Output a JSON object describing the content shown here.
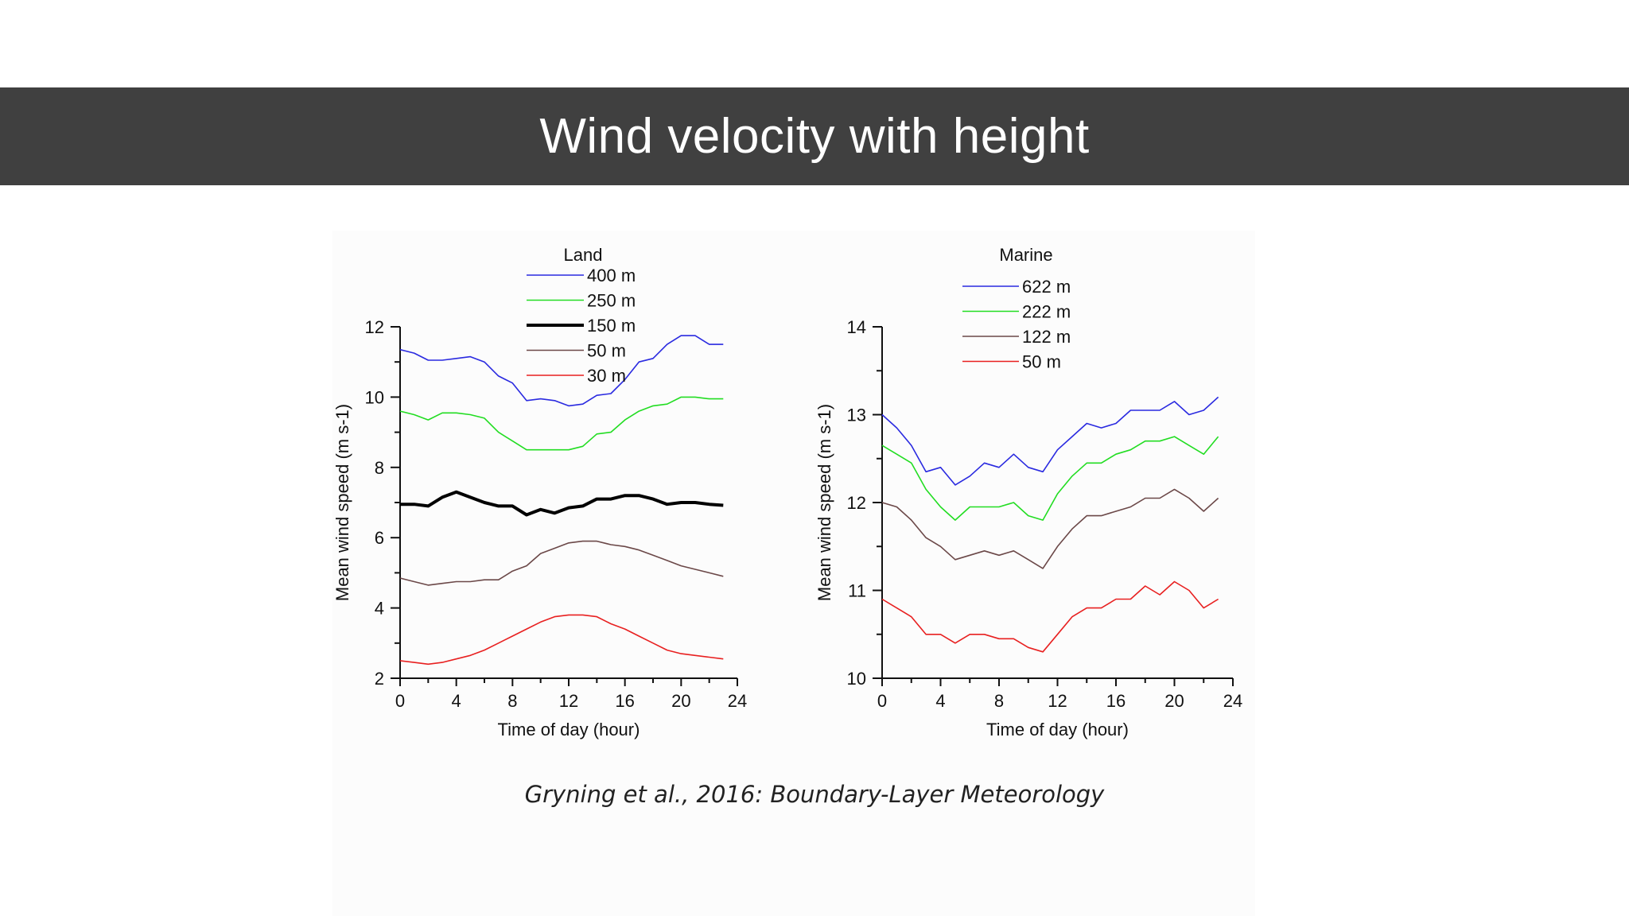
{
  "slide": {
    "title": "Wind velocity with height",
    "citation": "Gryning et al., 2016: Boundary-Layer Meteorology"
  },
  "chart_data": [
    {
      "type": "line",
      "title": "Land",
      "xlabel": "Time of day (hour)",
      "ylabel": "Mean wind speed (m s-1)",
      "xlim": [
        0,
        24
      ],
      "ylim": [
        2,
        12
      ],
      "xticks": [
        0,
        4,
        8,
        12,
        16,
        20,
        24
      ],
      "yticks": [
        2,
        4,
        6,
        8,
        10,
        12
      ],
      "legend_position": "top",
      "x": [
        0,
        1,
        2,
        3,
        4,
        5,
        6,
        7,
        8,
        9,
        10,
        11,
        12,
        13,
        14,
        15,
        16,
        17,
        18,
        19,
        20,
        21,
        22,
        23
      ],
      "series": [
        {
          "name": "400 m",
          "color": "#2a2ae0",
          "width": 1.6,
          "values": [
            11.35,
            11.25,
            11.05,
            11.05,
            11.1,
            11.15,
            11.0,
            10.6,
            10.4,
            9.9,
            9.95,
            9.9,
            9.75,
            9.8,
            10.05,
            10.1,
            10.5,
            11.0,
            11.1,
            11.5,
            11.75,
            11.75,
            11.5,
            11.5
          ]
        },
        {
          "name": "250 m",
          "color": "#22dd22",
          "width": 1.6,
          "values": [
            9.6,
            9.5,
            9.35,
            9.55,
            9.55,
            9.5,
            9.4,
            9.0,
            8.75,
            8.5,
            8.5,
            8.5,
            8.5,
            8.6,
            8.95,
            9.0,
            9.35,
            9.6,
            9.75,
            9.8,
            10.0,
            10.0,
            9.95,
            9.95
          ]
        },
        {
          "name": "150 m",
          "color": "#000000",
          "width": 4,
          "values": [
            6.95,
            6.95,
            6.9,
            7.15,
            7.3,
            7.15,
            7.0,
            6.9,
            6.9,
            6.65,
            6.8,
            6.7,
            6.85,
            6.9,
            7.1,
            7.1,
            7.2,
            7.2,
            7.1,
            6.95,
            7.0,
            7.0,
            6.95,
            6.92
          ]
        },
        {
          "name": "50 m",
          "color": "#6b4848",
          "width": 1.6,
          "values": [
            4.85,
            4.75,
            4.65,
            4.7,
            4.75,
            4.75,
            4.8,
            4.8,
            5.05,
            5.2,
            5.55,
            5.7,
            5.85,
            5.9,
            5.9,
            5.8,
            5.75,
            5.65,
            5.5,
            5.35,
            5.2,
            5.1,
            5.0,
            4.9
          ]
        },
        {
          "name": "30 m",
          "color": "#e82020",
          "width": 1.6,
          "values": [
            2.5,
            2.45,
            2.4,
            2.45,
            2.55,
            2.65,
            2.8,
            3.0,
            3.2,
            3.4,
            3.6,
            3.75,
            3.8,
            3.8,
            3.75,
            3.55,
            3.4,
            3.2,
            3.0,
            2.8,
            2.7,
            2.65,
            2.6,
            2.55
          ]
        }
      ]
    },
    {
      "type": "line",
      "title": "Marine",
      "xlabel": "Time of day (hour)",
      "ylabel": "Mean wind speed (m s-1)",
      "xlim": [
        0,
        24
      ],
      "ylim": [
        10,
        14
      ],
      "xticks": [
        0,
        4,
        8,
        12,
        16,
        20,
        24
      ],
      "yticks": [
        10,
        11,
        12,
        13,
        14
      ],
      "legend_position": "top",
      "x": [
        0,
        1,
        2,
        3,
        4,
        5,
        6,
        7,
        8,
        9,
        10,
        11,
        12,
        13,
        14,
        15,
        16,
        17,
        18,
        19,
        20,
        21,
        22,
        23
      ],
      "series": [
        {
          "name": "622 m",
          "color": "#2a2ae0",
          "width": 1.6,
          "values": [
            13.0,
            12.85,
            12.65,
            12.35,
            12.4,
            12.2,
            12.3,
            12.45,
            12.4,
            12.55,
            12.4,
            12.35,
            12.6,
            12.75,
            12.9,
            12.85,
            12.9,
            13.05,
            13.05,
            13.05,
            13.15,
            13.0,
            13.05,
            13.2
          ]
        },
        {
          "name": "222 m",
          "color": "#22dd22",
          "width": 1.6,
          "values": [
            12.65,
            12.55,
            12.45,
            12.15,
            11.95,
            11.8,
            11.95,
            11.95,
            11.95,
            12.0,
            11.85,
            11.8,
            12.1,
            12.3,
            12.45,
            12.45,
            12.55,
            12.6,
            12.7,
            12.7,
            12.75,
            12.65,
            12.55,
            12.75
          ]
        },
        {
          "name": "122 m",
          "color": "#6b4848",
          "width": 1.6,
          "values": [
            12.0,
            11.95,
            11.8,
            11.6,
            11.5,
            11.35,
            11.4,
            11.45,
            11.4,
            11.45,
            11.35,
            11.25,
            11.5,
            11.7,
            11.85,
            11.85,
            11.9,
            11.95,
            12.05,
            12.05,
            12.15,
            12.05,
            11.9,
            12.05
          ]
        },
        {
          "name": "50 m",
          "color": "#e82020",
          "width": 1.6,
          "values": [
            10.9,
            10.8,
            10.7,
            10.5,
            10.5,
            10.4,
            10.5,
            10.5,
            10.45,
            10.45,
            10.35,
            10.3,
            10.5,
            10.7,
            10.8,
            10.8,
            10.9,
            10.9,
            11.05,
            10.95,
            11.1,
            11.0,
            10.8,
            10.9
          ]
        }
      ]
    }
  ]
}
